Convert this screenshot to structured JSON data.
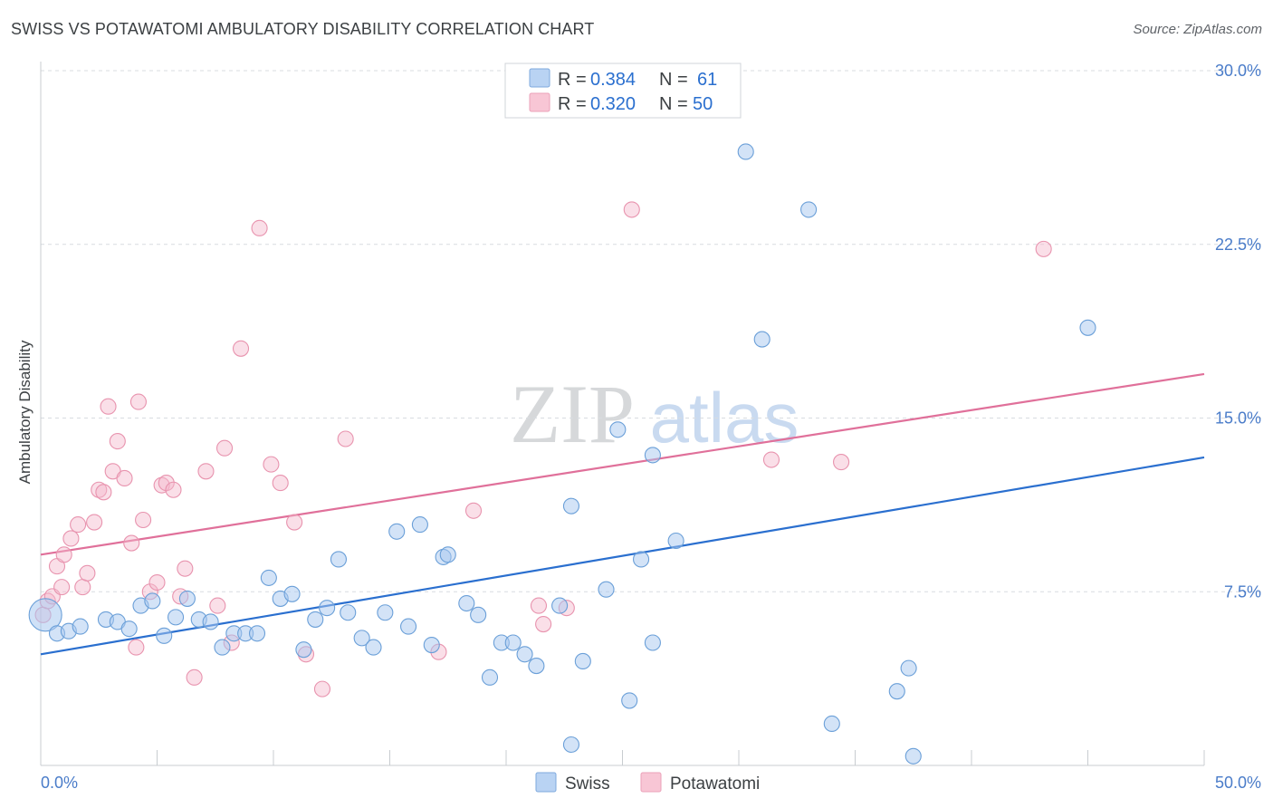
{
  "title": "SWISS VS POTAWATOMI AMBULATORY DISABILITY CORRELATION CHART",
  "source": "Source: ZipAtlas.com",
  "watermark": {
    "zip": "ZIP",
    "atlas": "atlas"
  },
  "colors": {
    "swiss_fill": "#a8c8f0",
    "swiss_stroke": "#6a9fd8",
    "swiss_line": "#2a6fcf",
    "pota_fill": "#f5b8cb",
    "pota_stroke": "#e893ae",
    "pota_line": "#e0709a",
    "axis_text": "#4a7cc9",
    "grid": "#d8dce0"
  },
  "legend": {
    "rows": [
      {
        "r_label": "R = ",
        "r_value": "0.384",
        "n_label": "N = ",
        "n_value": "61",
        "series": "swiss"
      },
      {
        "r_label": "R = ",
        "r_value": "0.320",
        "n_label": "N = ",
        "n_value": "50",
        "series": "pota"
      }
    ]
  },
  "chart_data": {
    "type": "scatter",
    "title": "SWISS VS POTAWATOMI AMBULATORY DISABILITY CORRELATION CHART",
    "xlabel": "",
    "ylabel": "Ambulatory Disability",
    "xlim": [
      0,
      50
    ],
    "ylim": [
      0,
      30
    ],
    "x_tick_labels": [
      "0.0%",
      "50.0%"
    ],
    "y_ticks": [
      7.5,
      15.0,
      22.5,
      30.0
    ],
    "y_tick_labels": [
      "7.5%",
      "15.0%",
      "22.5%",
      "30.0%"
    ],
    "grid": "horizontal dashed",
    "legend_position": "top-center",
    "series": [
      {
        "name": "Swiss",
        "color": "#a8c8f0",
        "trend": {
          "x": [
            0,
            50
          ],
          "y": [
            4.8,
            13.3
          ]
        },
        "points": [
          [
            0.2,
            6.5
          ],
          [
            0.7,
            5.7
          ],
          [
            1.2,
            5.8
          ],
          [
            1.7,
            6.0
          ],
          [
            2.8,
            6.3
          ],
          [
            3.3,
            6.2
          ],
          [
            3.8,
            5.9
          ],
          [
            4.3,
            6.9
          ],
          [
            4.8,
            7.1
          ],
          [
            5.3,
            5.6
          ],
          [
            5.8,
            6.4
          ],
          [
            6.3,
            7.2
          ],
          [
            6.8,
            6.3
          ],
          [
            7.3,
            6.2
          ],
          [
            7.8,
            5.1
          ],
          [
            8.3,
            5.7
          ],
          [
            8.8,
            5.7
          ],
          [
            9.3,
            5.7
          ],
          [
            9.8,
            8.1
          ],
          [
            10.3,
            7.2
          ],
          [
            10.8,
            7.4
          ],
          [
            11.3,
            5.0
          ],
          [
            11.8,
            6.3
          ],
          [
            12.3,
            6.8
          ],
          [
            12.8,
            8.9
          ],
          [
            13.2,
            6.6
          ],
          [
            13.8,
            5.5
          ],
          [
            14.3,
            5.1
          ],
          [
            14.8,
            6.6
          ],
          [
            15.3,
            10.1
          ],
          [
            15.8,
            6.0
          ],
          [
            16.3,
            10.4
          ],
          [
            16.8,
            5.2
          ],
          [
            17.3,
            9.0
          ],
          [
            17.5,
            9.1
          ],
          [
            18.3,
            7.0
          ],
          [
            18.8,
            6.5
          ],
          [
            19.3,
            3.8
          ],
          [
            19.8,
            5.3
          ],
          [
            20.3,
            5.3
          ],
          [
            20.8,
            4.8
          ],
          [
            21.3,
            4.3
          ],
          [
            22.3,
            6.9
          ],
          [
            22.8,
            11.2
          ],
          [
            22.8,
            0.9
          ],
          [
            23.3,
            4.5
          ],
          [
            24.3,
            7.6
          ],
          [
            24.8,
            14.5
          ],
          [
            25.3,
            2.8
          ],
          [
            25.8,
            8.9
          ],
          [
            26.3,
            5.3
          ],
          [
            26.3,
            13.4
          ],
          [
            27.3,
            9.7
          ],
          [
            30.3,
            26.5
          ],
          [
            31.0,
            18.4
          ],
          [
            33.0,
            24.0
          ],
          [
            34.0,
            1.8
          ],
          [
            36.8,
            3.2
          ],
          [
            37.3,
            4.2
          ],
          [
            37.5,
            0.4
          ],
          [
            45.0,
            18.9
          ]
        ]
      },
      {
        "name": "Potawatomi",
        "color": "#f5b8cb",
        "trend": {
          "x": [
            0,
            50
          ],
          "y": [
            9.1,
            16.9
          ]
        },
        "points": [
          [
            0.1,
            6.5
          ],
          [
            0.3,
            7.1
          ],
          [
            0.5,
            7.3
          ],
          [
            0.7,
            8.6
          ],
          [
            0.9,
            7.7
          ],
          [
            1.0,
            9.1
          ],
          [
            1.3,
            9.8
          ],
          [
            1.6,
            10.4
          ],
          [
            1.8,
            7.7
          ],
          [
            2.0,
            8.3
          ],
          [
            2.3,
            10.5
          ],
          [
            2.5,
            11.9
          ],
          [
            2.7,
            11.8
          ],
          [
            2.9,
            15.5
          ],
          [
            3.1,
            12.7
          ],
          [
            3.3,
            14.0
          ],
          [
            3.6,
            12.4
          ],
          [
            3.9,
            9.6
          ],
          [
            4.2,
            15.7
          ],
          [
            4.4,
            10.6
          ],
          [
            4.7,
            7.5
          ],
          [
            5.0,
            7.9
          ],
          [
            5.2,
            12.1
          ],
          [
            5.4,
            12.2
          ],
          [
            5.7,
            11.9
          ],
          [
            6.0,
            7.3
          ],
          [
            6.2,
            8.5
          ],
          [
            6.6,
            3.8
          ],
          [
            7.1,
            12.7
          ],
          [
            7.6,
            6.9
          ],
          [
            7.9,
            13.7
          ],
          [
            8.6,
            18.0
          ],
          [
            9.4,
            23.2
          ],
          [
            9.9,
            13.0
          ],
          [
            10.3,
            12.2
          ],
          [
            10.9,
            10.5
          ],
          [
            11.4,
            4.8
          ],
          [
            12.1,
            3.3
          ],
          [
            13.1,
            14.1
          ],
          [
            17.1,
            4.9
          ],
          [
            18.6,
            11.0
          ],
          [
            21.4,
            6.9
          ],
          [
            21.6,
            6.1
          ],
          [
            22.6,
            6.8
          ],
          [
            25.4,
            24.0
          ],
          [
            31.4,
            13.2
          ],
          [
            34.4,
            13.1
          ],
          [
            43.1,
            22.3
          ],
          [
            4.1,
            5.1
          ],
          [
            8.2,
            5.3
          ]
        ]
      }
    ]
  },
  "bottom_legend": [
    {
      "label": "Swiss",
      "series": "swiss"
    },
    {
      "label": "Potawatomi",
      "series": "pota"
    }
  ]
}
